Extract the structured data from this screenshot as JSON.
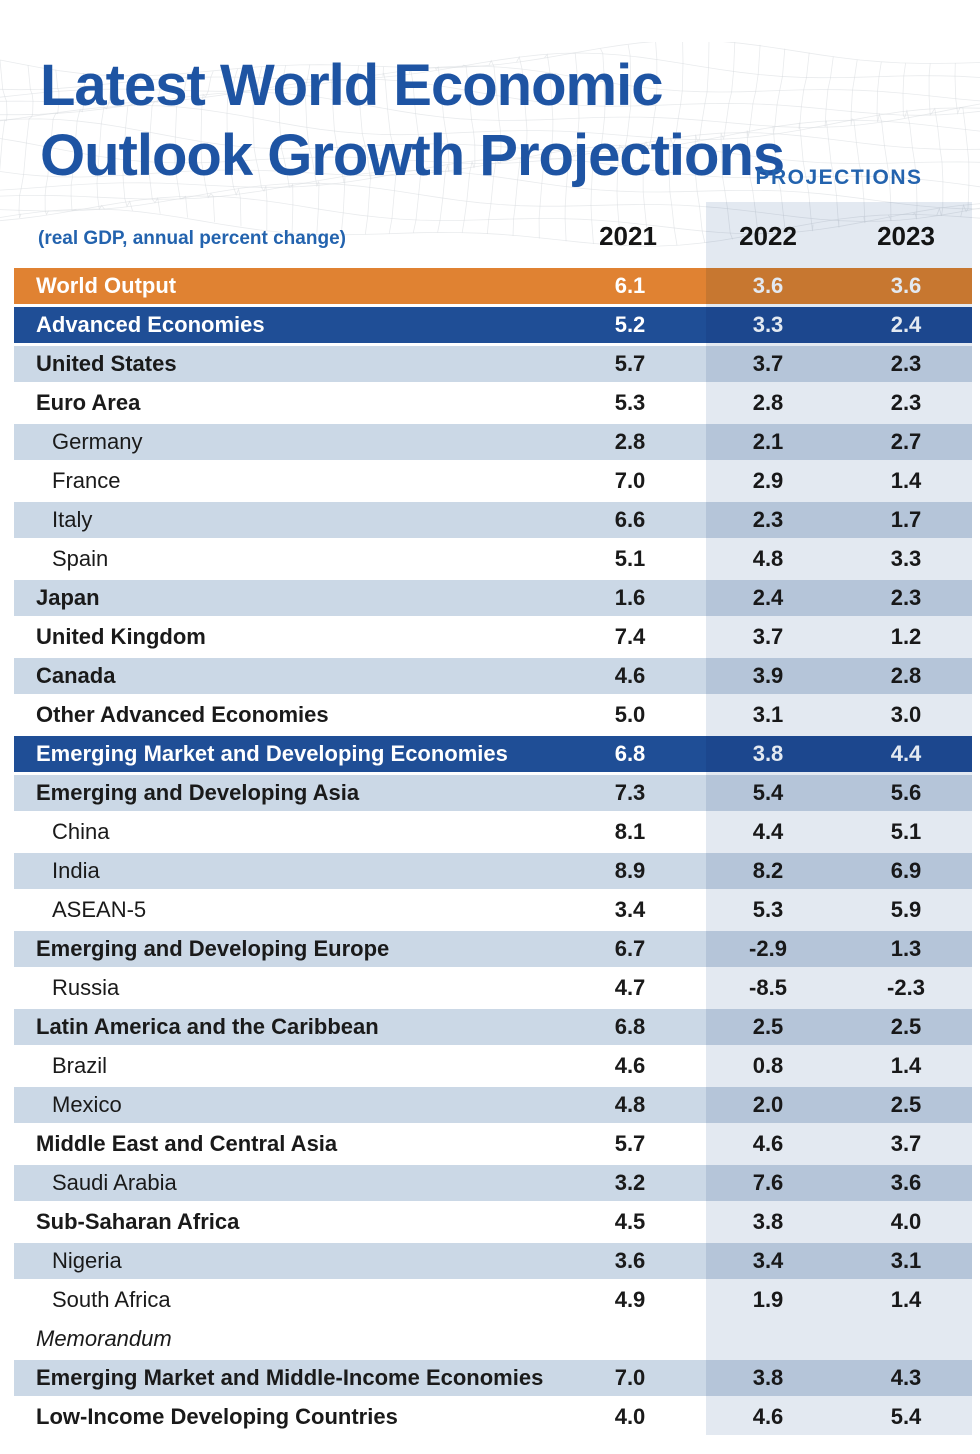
{
  "header": {
    "title_line1": "Latest World Economic",
    "title_line2": "Outlook Growth Projections",
    "subtitle": "(real GDP, annual percent change)",
    "projections_label": "PROJECTIONS"
  },
  "colors": {
    "title_blue": "#1E54A3",
    "accent_blue": "#2363AE",
    "orange_row": "#E08232",
    "dark_blue_row": "#1F4E96",
    "light_row": "#CBD8E6",
    "projection_band": "#E3E9F1",
    "text_dark": "#1A1A1A"
  },
  "chart_data": {
    "type": "table",
    "title": "Latest World Economic Outlook Growth Projections",
    "subtitle": "(real GDP, annual percent change)",
    "columns": [
      "2021",
      "2022",
      "2023"
    ],
    "projection_columns": [
      "2022",
      "2023"
    ],
    "rows": [
      {
        "label": "World Output",
        "values": [
          "6.1",
          "3.6",
          "3.6"
        ],
        "style": "orange"
      },
      {
        "label": "Advanced Economies",
        "values": [
          "5.2",
          "3.3",
          "2.4"
        ],
        "style": "blue"
      },
      {
        "label": "United States",
        "values": [
          "5.7",
          "3.7",
          "2.3"
        ],
        "shaded": true,
        "bold": true
      },
      {
        "label": "Euro Area",
        "values": [
          "5.3",
          "2.8",
          "2.3"
        ],
        "bold": true
      },
      {
        "label": "Germany",
        "values": [
          "2.8",
          "2.1",
          "2.7"
        ],
        "shaded": true,
        "indent": true
      },
      {
        "label": "France",
        "values": [
          "7.0",
          "2.9",
          "1.4"
        ],
        "indent": true
      },
      {
        "label": "Italy",
        "values": [
          "6.6",
          "2.3",
          "1.7"
        ],
        "shaded": true,
        "indent": true
      },
      {
        "label": "Spain",
        "values": [
          "5.1",
          "4.8",
          "3.3"
        ],
        "indent": true
      },
      {
        "label": "Japan",
        "values": [
          "1.6",
          "2.4",
          "2.3"
        ],
        "shaded": true,
        "bold": true
      },
      {
        "label": "United Kingdom",
        "values": [
          "7.4",
          "3.7",
          "1.2"
        ],
        "bold": true
      },
      {
        "label": "Canada",
        "values": [
          "4.6",
          "3.9",
          "2.8"
        ],
        "shaded": true,
        "bold": true
      },
      {
        "label": "Other Advanced Economies",
        "values": [
          "5.0",
          "3.1",
          "3.0"
        ],
        "bold": true
      },
      {
        "label": "Emerging Market and Developing Economies",
        "values": [
          "6.8",
          "3.8",
          "4.4"
        ],
        "style": "blue"
      },
      {
        "label": "Emerging and Developing Asia",
        "values": [
          "7.3",
          "5.4",
          "5.6"
        ],
        "shaded": true,
        "bold": true
      },
      {
        "label": "China",
        "values": [
          "8.1",
          "4.4",
          "5.1"
        ],
        "indent": true
      },
      {
        "label": "India",
        "values": [
          "8.9",
          "8.2",
          "6.9"
        ],
        "shaded": true,
        "indent": true
      },
      {
        "label": "ASEAN-5",
        "values": [
          "3.4",
          "5.3",
          "5.9"
        ],
        "indent": true
      },
      {
        "label": "Emerging and Developing Europe",
        "values": [
          "6.7",
          "-2.9",
          "1.3"
        ],
        "shaded": true,
        "bold": true
      },
      {
        "label": "Russia",
        "values": [
          "4.7",
          "-8.5",
          "-2.3"
        ],
        "indent": true
      },
      {
        "label": "Latin America and the Caribbean",
        "values": [
          "6.8",
          "2.5",
          "2.5"
        ],
        "shaded": true,
        "bold": true
      },
      {
        "label": "Brazil",
        "values": [
          "4.6",
          "0.8",
          "1.4"
        ],
        "indent": true
      },
      {
        "label": "Mexico",
        "values": [
          "4.8",
          "2.0",
          "2.5"
        ],
        "shaded": true,
        "indent": true
      },
      {
        "label": "Middle East and Central Asia",
        "values": [
          "5.7",
          "4.6",
          "3.7"
        ],
        "bold": true
      },
      {
        "label": "Saudi Arabia",
        "values": [
          "3.2",
          "7.6",
          "3.6"
        ],
        "shaded": true,
        "indent": true
      },
      {
        "label": "Sub-Saharan Africa",
        "values": [
          "4.5",
          "3.8",
          "4.0"
        ],
        "bold": true
      },
      {
        "label": "Nigeria",
        "values": [
          "3.6",
          "3.4",
          "3.1"
        ],
        "shaded": true,
        "indent": true
      },
      {
        "label": "South Africa",
        "values": [
          "4.9",
          "1.9",
          "1.4"
        ],
        "indent": true
      },
      {
        "label": "Memorandum",
        "values": [],
        "italic": true
      },
      {
        "label": "Emerging Market and Middle-Income Economies",
        "values": [
          "7.0",
          "3.8",
          "4.3"
        ],
        "shaded": true,
        "bold": true
      },
      {
        "label": "Low-Income Developing Countries",
        "values": [
          "4.0",
          "4.6",
          "5.4"
        ],
        "bold": true
      }
    ]
  }
}
